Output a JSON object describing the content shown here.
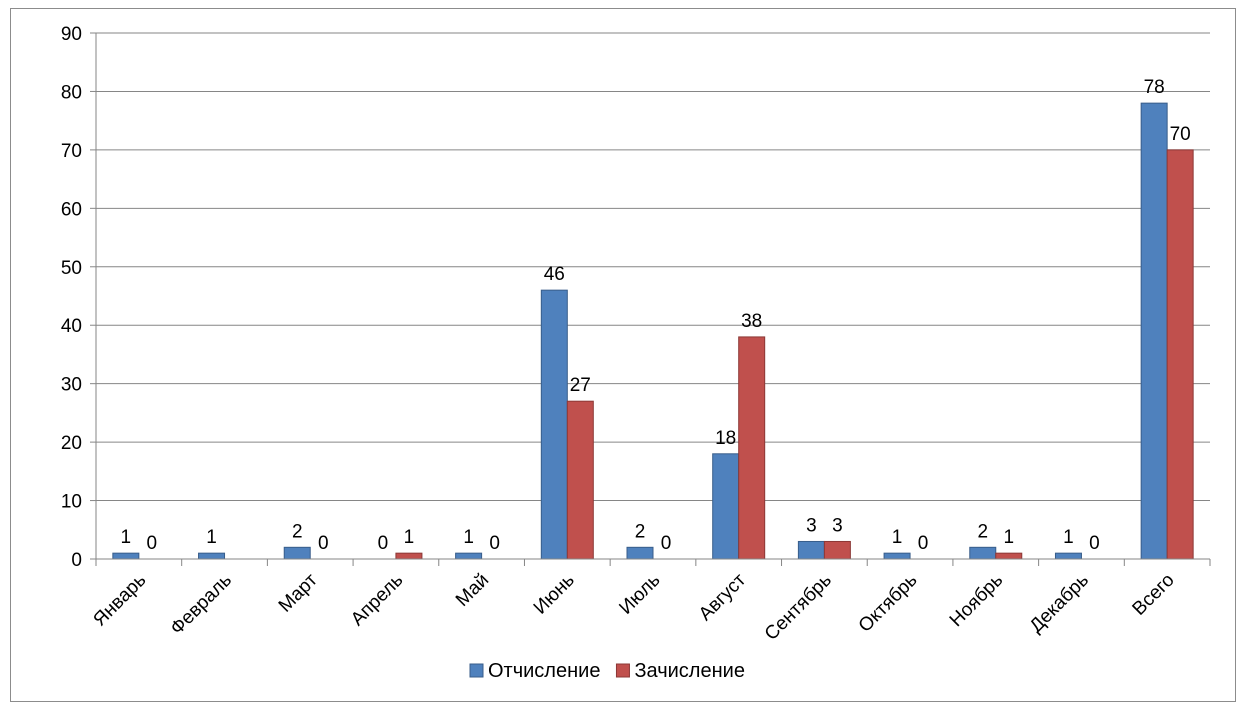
{
  "chart_data": {
    "type": "bar",
    "title": "",
    "xlabel": "",
    "ylabel": "",
    "ylim": [
      0,
      90
    ],
    "yticks": [
      0,
      10,
      20,
      30,
      40,
      50,
      60,
      70,
      80,
      90
    ],
    "grid": true,
    "legend_position": "bottom",
    "categories": [
      "Январь",
      "Февраль",
      "Март",
      "Апрель",
      "Май",
      "Июнь",
      "Июль",
      "Август",
      "Сентябрь",
      "Октябрь",
      "Ноябрь",
      "Декабрь",
      "Всего"
    ],
    "series": [
      {
        "name": "Отчисление",
        "color": "#4f81bd",
        "stroke": "#385d8a",
        "values": [
          1,
          1,
          2,
          0,
          1,
          46,
          2,
          18,
          3,
          1,
          2,
          1,
          78
        ],
        "labels": [
          "1",
          "1",
          "2",
          "0",
          "1",
          "46",
          "2",
          "18",
          "3",
          "1",
          "2",
          "1",
          "78"
        ]
      },
      {
        "name": "Зачисление",
        "color": "#c0504d",
        "stroke": "#8c3836",
        "values": [
          0,
          null,
          0,
          1,
          0,
          27,
          0,
          38,
          3,
          0,
          1,
          0,
          70
        ],
        "labels": [
          "0",
          "",
          "0",
          "1",
          "0",
          "27",
          "0",
          "38",
          "3",
          "0",
          "1",
          "0",
          "70"
        ]
      }
    ]
  }
}
